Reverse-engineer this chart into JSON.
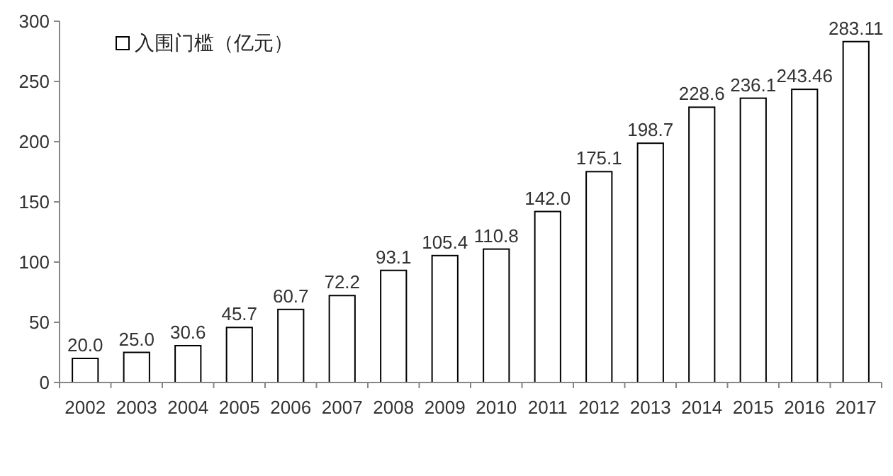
{
  "chart_data": {
    "type": "bar",
    "categories": [
      "2002",
      "2003",
      "2004",
      "2005",
      "2006",
      "2007",
      "2008",
      "2009",
      "2010",
      "2011",
      "2012",
      "2013",
      "2014",
      "2015",
      "2016",
      "2017"
    ],
    "series": [
      {
        "name": "入围门槛（亿元）",
        "color": "#ffffff",
        "values": [
          20.0,
          25.0,
          30.6,
          45.7,
          60.7,
          72.2,
          93.1,
          105.4,
          110.8,
          142.0,
          175.1,
          198.7,
          228.6,
          236.1,
          243.46,
          283.11
        ],
        "value_labels": [
          "20.0",
          "25.0",
          "30.6",
          "45.7",
          "60.7",
          "72.2",
          "93.1",
          "105.4",
          "110.8",
          "142.0",
          "175.1",
          "198.7",
          "228.6",
          "236.1",
          "243.46",
          "283.11"
        ]
      }
    ],
    "ylim": [
      0,
      300
    ],
    "yticks": [
      0,
      50,
      100,
      150,
      200,
      250,
      300
    ],
    "legend": "top left",
    "grid": false
  }
}
